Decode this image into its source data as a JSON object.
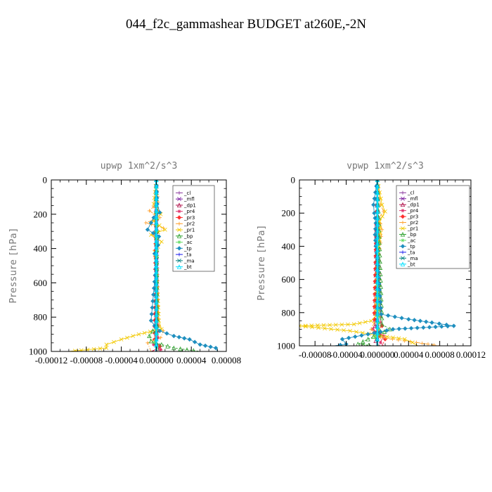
{
  "figure": {
    "title": "044_f2c_gammashear  BUDGET at260E,-2N"
  },
  "chart_data": [
    {
      "type": "line",
      "title": "upwp   1xm^2/s^3",
      "ylabel": "Pressure [hPa]",
      "xlim": [
        -0.00012,
        8e-05
      ],
      "ylim": [
        1000,
        0
      ],
      "xticks": [
        -0.00012,
        -8e-05,
        -4e-05,
        0.0,
        4e-05,
        8e-05
      ],
      "xtick_labels": [
        "-0.00012",
        "-0.00008",
        "-0.00004",
        "0.000000",
        "0.00004",
        "0.00008"
      ],
      "yticks": [
        0,
        200,
        400,
        600,
        800,
        1000
      ],
      "ytick_labels": [
        "0",
        "200",
        "400",
        "600",
        "800",
        "1000"
      ],
      "grid": false,
      "legend": "top-right",
      "series": [
        {
          "name": "_cl",
          "color": "#8b3a9e",
          "y": [
            0,
            500,
            1000
          ],
          "values": [
            0,
            0,
            0
          ]
        },
        {
          "name": "_mfl",
          "color": "#7a1fa0",
          "y": [
            0,
            500,
            1000
          ],
          "values": [
            0,
            0,
            0
          ]
        },
        {
          "name": "_dp1",
          "color": "#b0114a",
          "y": [
            0,
            900,
            950,
            980,
            1000
          ],
          "values": [
            0,
            0,
            -2e-06,
            4e-06,
            -6e-06
          ]
        },
        {
          "name": "_pr4",
          "color": "#e0306a",
          "y": [
            0,
            920,
            960,
            990,
            1000
          ],
          "values": [
            0,
            2e-06,
            -3e-06,
            5e-06,
            -2e-06
          ]
        },
        {
          "name": "_pr3",
          "color": "#ff3030",
          "y": [
            0,
            930,
            970,
            1000
          ],
          "values": [
            0,
            -2e-06,
            4e-06,
            -4e-06
          ]
        },
        {
          "name": "_pr2",
          "color": "#ff9f2a",
          "y": [
            0,
            130,
            180,
            220,
            250,
            280,
            320,
            380,
            450,
            500,
            850,
            880,
            920,
            950,
            1000
          ],
          "values": [
            0,
            2e-06,
            -8e-06,
            4e-06,
            -1.2e-05,
            8e-06,
            -3e-06,
            2e-06,
            0,
            0,
            3e-06,
            8e-06,
            5e-06,
            -1e-05,
            -6e-06
          ]
        },
        {
          "name": "_pr1",
          "color": "#f2c800",
          "y": [
            0,
            140,
            200,
            240,
            290,
            320,
            360,
            420,
            480,
            820,
            870,
            900,
            930,
            960,
            980,
            1000
          ],
          "values": [
            0,
            -3e-06,
            5e-06,
            -3e-06,
            1e-05,
            -6e-06,
            6e-06,
            -2e-06,
            0,
            3e-06,
            6e-06,
            -2e-05,
            -4e-05,
            -5.7e-05,
            -5.7e-05,
            -0.0001
          ]
        },
        {
          "name": "_bp",
          "color": "#2ca02c",
          "y": [
            0,
            850,
            880,
            910,
            940,
            960,
            980,
            1000
          ],
          "values": [
            0,
            1e-06,
            -4e-06,
            -8e-06,
            -6e-06,
            6e-06,
            2e-05,
            5e-05
          ]
        },
        {
          "name": "_ac",
          "color": "#66dd66",
          "y": [
            0,
            900,
            950,
            1000
          ],
          "values": [
            0,
            1e-06,
            -2e-06,
            3e-06
          ]
        },
        {
          "name": "_tp",
          "color": "#1f8fbf",
          "y": [
            0,
            140,
            190,
            220,
            250,
            290,
            330,
            380,
            430,
            480,
            820,
            850,
            880,
            910,
            930,
            960,
            980,
            1000
          ],
          "values": [
            0,
            1e-06,
            4e-06,
            -3e-06,
            -6e-06,
            -1e-05,
            3e-06,
            2e-06,
            -2e-06,
            0,
            -6e-06,
            -2e-06,
            4e-06,
            2e-05,
            3.8e-05,
            5e-05,
            6.8e-05,
            7e-05
          ]
        },
        {
          "name": "_ta",
          "color": "#1a1aee",
          "y": [
            0,
            500,
            1000
          ],
          "values": [
            0,
            0,
            0
          ]
        },
        {
          "name": "_ma",
          "color": "#008080",
          "y": [
            0,
            500,
            1000
          ],
          "values": [
            0,
            0,
            0
          ]
        },
        {
          "name": "_bt",
          "color": "#00e0ff",
          "y": [
            0,
            500,
            1000
          ],
          "values": [
            0,
            0,
            0
          ]
        }
      ]
    },
    {
      "type": "line",
      "title": "vpwp   1xm^2/s^3",
      "ylabel": "Pressure [hPa]",
      "xlim": [
        -0.0001,
        0.00012
      ],
      "ylim": [
        1000,
        0
      ],
      "xticks": [
        -8e-05,
        -4e-05,
        0.0,
        4e-05,
        8e-05,
        0.00012
      ],
      "xtick_labels": [
        "-0.00008",
        "-0.00004",
        "0.000000",
        "0.00004",
        "0.00008",
        "0.00012"
      ],
      "yticks": [
        0,
        200,
        400,
        600,
        800,
        1000
      ],
      "ytick_labels": [
        "0",
        "200",
        "400",
        "600",
        "800",
        "1000"
      ],
      "grid": false,
      "legend": "top-right",
      "series": [
        {
          "name": "_cl",
          "color": "#8b3a9e",
          "y": [
            0,
            500,
            1000
          ],
          "values": [
            0,
            0,
            0
          ]
        },
        {
          "name": "_mfl",
          "color": "#7a1fa0",
          "y": [
            0,
            500,
            1000
          ],
          "values": [
            0,
            0,
            0
          ]
        },
        {
          "name": "_dp1",
          "color": "#b0114a",
          "y": [
            0,
            880,
            930,
            970,
            1000
          ],
          "values": [
            0,
            -3e-06,
            4e-06,
            -2e-06,
            3e-06
          ]
        },
        {
          "name": "_pr4",
          "color": "#e0306a",
          "y": [
            0,
            860,
            900,
            940,
            980,
            1000
          ],
          "values": [
            0,
            4e-06,
            -6e-06,
            8e-06,
            4e-06,
            8e-06
          ]
        },
        {
          "name": "_pr3",
          "color": "#ff3030",
          "y": [
            0,
            840,
            880,
            920,
            960,
            1000
          ],
          "values": [
            0,
            -4e-06,
            6e-06,
            -4e-06,
            1e-05,
            6e-06
          ]
        },
        {
          "name": "_pr2",
          "color": "#ff9f2a",
          "y": [
            0,
            150,
            190,
            230,
            300,
            380,
            450,
            500,
            820,
            860,
            900,
            950,
            980,
            1000
          ],
          "values": [
            0,
            4e-06,
            8e-06,
            2e-06,
            6e-06,
            4e-06,
            2e-06,
            0,
            2e-06,
            -4e-06,
            -8e-06,
            4e-06,
            5e-05,
            8e-05
          ]
        },
        {
          "name": "_pr1",
          "color": "#f2c800",
          "y": [
            0,
            150,
            190,
            250,
            320,
            400,
            480,
            820,
            850,
            870,
            880,
            910,
            940,
            960,
            980,
            1000
          ],
          "values": [
            0,
            6e-06,
            1e-05,
            3e-06,
            4e-06,
            2e-06,
            0,
            -2e-06,
            -8e-06,
            -3e-05,
            -0.0001,
            -3.5e-05,
            5e-06,
            3.5e-05,
            4.5e-05,
            5.2e-05
          ]
        },
        {
          "name": "_bp",
          "color": "#2ca02c",
          "y": [
            0,
            870,
            900,
            930,
            960,
            990,
            1000
          ],
          "values": [
            0,
            6e-06,
            1.6e-05,
            2e-06,
            -1.2e-05,
            -2.5e-05,
            -4e-06
          ]
        },
        {
          "name": "_ac",
          "color": "#66dd66",
          "y": [
            0,
            900,
            950,
            1000
          ],
          "values": [
            0,
            2e-06,
            -3e-06,
            2e-06
          ]
        },
        {
          "name": "_tp",
          "color": "#1f8fbf",
          "y": [
            0,
            150,
            200,
            260,
            330,
            400,
            480,
            810,
            840,
            860,
            880,
            900,
            930,
            960,
            990,
            1000
          ],
          "values": [
            0,
            -5e-06,
            -4e-06,
            -2e-06,
            -3e-06,
            -2e-06,
            0,
            5e-06,
            4e-05,
            7e-05,
            9.8e-05,
            2e-05,
            -1.2e-05,
            -4.5e-05,
            -4e-05,
            -5.5e-05
          ]
        },
        {
          "name": "_ta",
          "color": "#1a1aee",
          "y": [
            0,
            500,
            1000
          ],
          "values": [
            0,
            0,
            0
          ]
        },
        {
          "name": "_ma",
          "color": "#008080",
          "y": [
            0,
            500,
            1000
          ],
          "values": [
            0,
            0,
            0
          ]
        },
        {
          "name": "_bt",
          "color": "#00e0ff",
          "y": [
            0,
            500,
            1000
          ],
          "values": [
            0,
            0,
            0
          ]
        }
      ]
    }
  ]
}
